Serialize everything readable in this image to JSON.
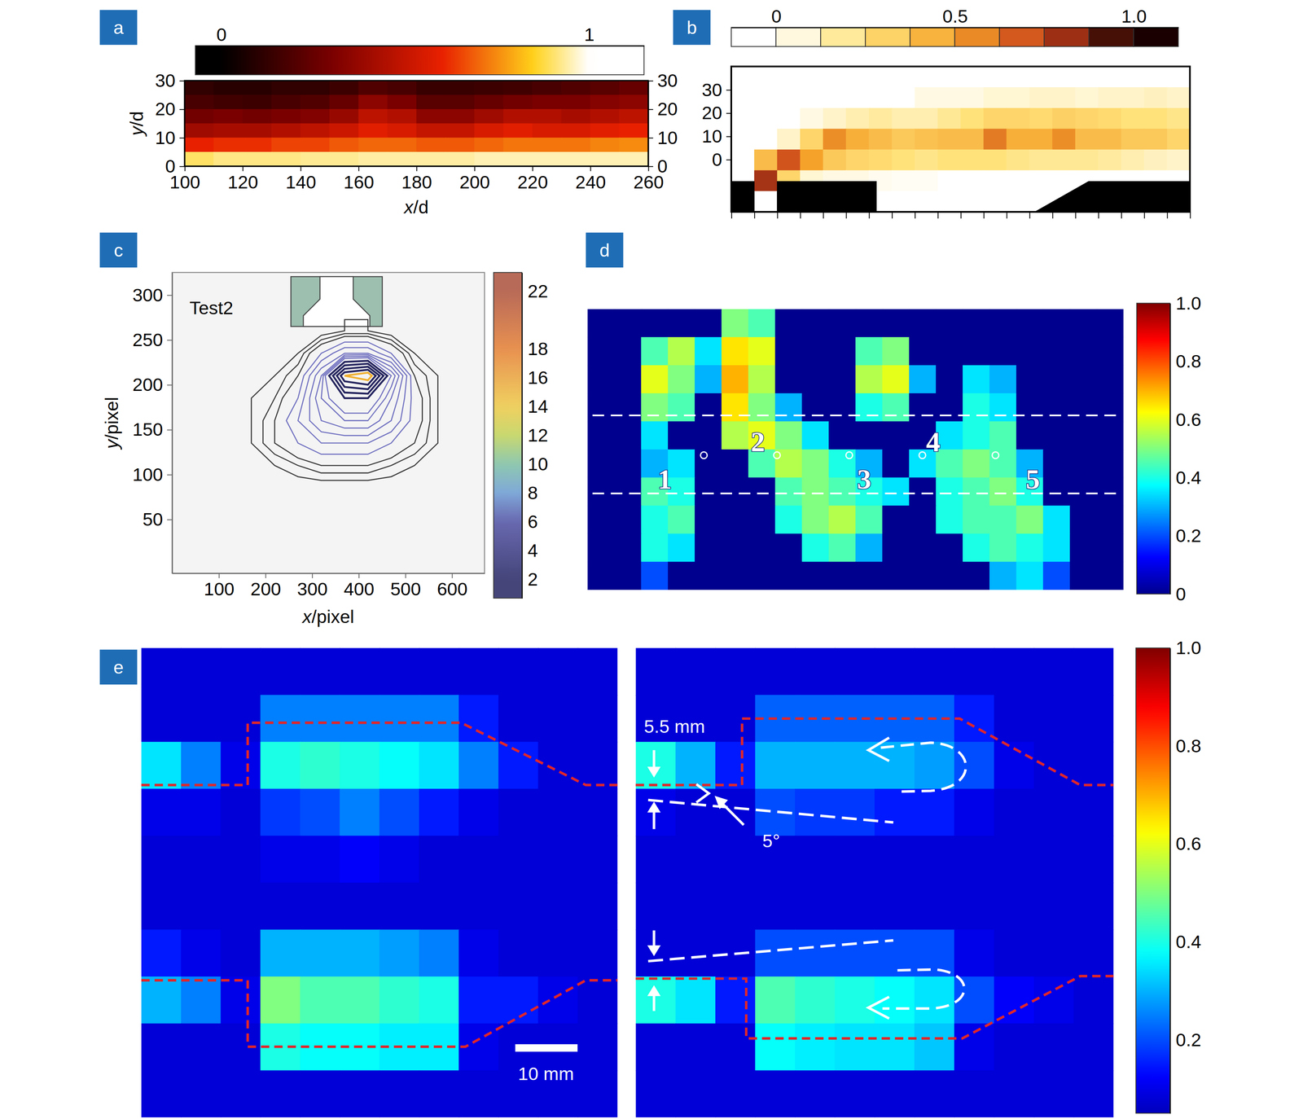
{
  "chart_data": [
    {
      "type": "heatmap",
      "label": "a",
      "xlabel": "x/d",
      "ylabel": "y/d",
      "xlim": [
        100,
        260
      ],
      "xticks": [
        100,
        120,
        140,
        160,
        180,
        200,
        220,
        240,
        260
      ],
      "ylim": [
        0,
        30
      ],
      "yticks": [
        0,
        10,
        20,
        30
      ],
      "y2lim": [
        0,
        30
      ],
      "y2ticks": [
        0,
        10,
        20,
        30
      ],
      "colorbar": {
        "lim": [
          -0.07,
          1.15
        ],
        "ticks": [
          0,
          1
        ]
      },
      "values": [
        [
          0.12,
          0.1,
          0.1,
          0.12,
          0.12,
          0.15,
          0.2,
          0.18,
          0.14,
          0.14,
          0.15,
          0.16,
          0.18,
          0.2,
          0.22,
          0.25
        ],
        [
          0.18,
          0.16,
          0.15,
          0.18,
          0.2,
          0.25,
          0.35,
          0.3,
          0.22,
          0.22,
          0.25,
          0.28,
          0.3,
          0.3,
          0.33,
          0.35
        ],
        [
          0.28,
          0.3,
          0.28,
          0.3,
          0.32,
          0.38,
          0.48,
          0.45,
          0.35,
          0.35,
          0.4,
          0.45,
          0.45,
          0.42,
          0.45,
          0.48
        ],
        [
          0.4,
          0.42,
          0.42,
          0.45,
          0.48,
          0.52,
          0.58,
          0.55,
          0.5,
          0.5,
          0.55,
          0.58,
          0.55,
          0.55,
          0.58,
          0.6
        ],
        [
          0.6,
          0.62,
          0.62,
          0.65,
          0.65,
          0.68,
          0.7,
          0.7,
          0.68,
          0.68,
          0.7,
          0.72,
          0.72,
          0.72,
          0.74,
          0.75
        ],
        [
          0.9,
          0.92,
          0.92,
          0.92,
          0.93,
          0.93,
          0.94,
          0.94,
          0.94,
          0.94,
          0.95,
          0.95,
          0.95,
          0.95,
          0.95,
          0.95
        ]
      ]
    },
    {
      "type": "heatmap",
      "label": "b",
      "xlim": [
        0,
        100
      ],
      "xticks": [
        0,
        5,
        10,
        15,
        20,
        25,
        30,
        35,
        40,
        45,
        50,
        55,
        60,
        65,
        70,
        75,
        80,
        85,
        90,
        95,
        100
      ],
      "ylim": [
        -22.5,
        40
      ],
      "yticks": [
        0,
        10,
        20,
        30
      ],
      "tick_labels": "y",
      "colorbar": {
        "lim": [
          -0.125,
          1.125
        ],
        "ticks": [
          0,
          0.5,
          {
            "value": 1,
            "label": "1.0"
          }
        ]
      },
      "values": [
        [
          0,
          0,
          0,
          0,
          0,
          0,
          0,
          0,
          0,
          0,
          0,
          0,
          0,
          0,
          0,
          0,
          0,
          0,
          0,
          0
        ],
        [
          0,
          0,
          0,
          0,
          0,
          0,
          0,
          0,
          0.05,
          0.05,
          0.05,
          0.08,
          0.08,
          0.1,
          0.1,
          0.08,
          0.1,
          0.1,
          0.12,
          0.1
        ],
        [
          0,
          0,
          0,
          0.05,
          0.1,
          0.15,
          0.18,
          0.15,
          0.15,
          0.2,
          0.25,
          0.3,
          0.3,
          0.28,
          0.32,
          0.3,
          0.28,
          0.25,
          0.25,
          0.22
        ],
        [
          0,
          0,
          0.1,
          0.3,
          0.55,
          0.45,
          0.4,
          0.35,
          0.38,
          0.4,
          0.4,
          0.6,
          0.45,
          0.45,
          0.55,
          0.4,
          0.4,
          0.35,
          0.35,
          0.3
        ],
        [
          0,
          0.4,
          0.7,
          0.5,
          0.35,
          0.3,
          0.28,
          0.25,
          0.22,
          0.25,
          0.25,
          0.25,
          0.22,
          0.2,
          0.2,
          0.2,
          0.18,
          0.15,
          0.12,
          0.1
        ],
        [
          0,
          0.8,
          0.3,
          0.08,
          0.05,
          0.05,
          0.03,
          0.02,
          0.02,
          0,
          0,
          0,
          0,
          0,
          0,
          0,
          0,
          0,
          0,
          0
        ],
        [
          0,
          0,
          0,
          0,
          0,
          0,
          0,
          0,
          0,
          0,
          0,
          0,
          0,
          0,
          0,
          0,
          0,
          0,
          0,
          0
        ]
      ]
    },
    {
      "type": "contour",
      "label": "c",
      "title": "Test2",
      "xlabel": "x/pixel",
      "ylabel": "y/pixel",
      "xlim": [
        0,
        670
      ],
      "xticks": [
        100,
        200,
        300,
        400,
        500,
        600
      ],
      "ylim": [
        -10,
        325
      ],
      "yticks": [
        50,
        100,
        150,
        200,
        250,
        300
      ],
      "x": [
        120,
        170,
        220,
        270,
        320,
        370,
        420,
        470,
        520,
        570,
        620
      ],
      "y": [
        260,
        235,
        210,
        185,
        160,
        135,
        110,
        85
      ],
      "values": [
        [
          0,
          0,
          0,
          0,
          0.5,
          1,
          1,
          0.5,
          0,
          0,
          0
        ],
        [
          0,
          0,
          0.5,
          1,
          3,
          5,
          5,
          3,
          1,
          0.5,
          0
        ],
        [
          0,
          0.5,
          1,
          2,
          6,
          18,
          20,
          8,
          2,
          1,
          0
        ],
        [
          0,
          1,
          1.5,
          3,
          7,
          10,
          10,
          6,
          2.5,
          1,
          0
        ],
        [
          0,
          1,
          2,
          4,
          6,
          7,
          7,
          5,
          2.5,
          1,
          0
        ],
        [
          0,
          1,
          2,
          3,
          4,
          4,
          4,
          3,
          2,
          1,
          0
        ],
        [
          0,
          0.5,
          1,
          1.5,
          2,
          2,
          2,
          1.5,
          1,
          0.5,
          0
        ],
        [
          0,
          0,
          0,
          0.5,
          0.5,
          0.5,
          0.5,
          0.5,
          0,
          0,
          0
        ]
      ],
      "levels": [
        1,
        1.5,
        2,
        3,
        4,
        5,
        6,
        7,
        8,
        10,
        12,
        14,
        16,
        18
      ],
      "colorbar": {
        "lim": [
          0.7,
          23.3
        ],
        "ticks": [
          2,
          4,
          6,
          8,
          10,
          12,
          14,
          16,
          18,
          22
        ]
      }
    },
    {
      "type": "heatmap",
      "label": "d",
      "annotations": [
        "1",
        "2",
        "3",
        "4",
        "5"
      ],
      "colorbar": {
        "lim": [
          0,
          1
        ],
        "ticks": [
          0,
          0.2,
          0.4,
          0.6,
          0.8,
          {
            "value": 1,
            "label": "1.0"
          }
        ]
      },
      "values": [
        [
          0,
          0,
          0,
          0,
          0,
          0.5,
          0.45,
          0,
          0,
          0,
          0,
          0,
          0,
          0,
          0,
          0,
          0,
          0,
          0,
          0
        ],
        [
          0,
          0,
          0.45,
          0.55,
          0.35,
          0.65,
          0.6,
          0,
          0,
          0,
          0.45,
          0.5,
          0,
          0,
          0,
          0,
          0,
          0,
          0,
          0
        ],
        [
          0,
          0,
          0.6,
          0.5,
          0.3,
          0.7,
          0.55,
          0,
          0,
          0,
          0.55,
          0.6,
          0.3,
          0,
          0.35,
          0.3,
          0,
          0,
          0,
          0
        ],
        [
          0,
          0,
          0.5,
          0.45,
          0,
          0.65,
          0.5,
          0.3,
          0,
          0,
          0.4,
          0.45,
          0,
          0,
          0.4,
          0.35,
          0,
          0,
          0,
          0
        ],
        [
          0,
          0,
          0.35,
          0,
          0,
          0.55,
          0.6,
          0.5,
          0.35,
          0,
          0,
          0,
          0,
          0.35,
          0.4,
          0.45,
          0,
          0,
          0,
          0
        ],
        [
          0,
          0,
          0.3,
          0.35,
          0,
          0,
          0.45,
          0.55,
          0.5,
          0.4,
          0.3,
          0,
          0.35,
          0.45,
          0.5,
          0.45,
          0.3,
          0,
          0,
          0
        ],
        [
          0,
          0,
          0.45,
          0.4,
          0,
          0,
          0,
          0.45,
          0.5,
          0.45,
          0.4,
          0.35,
          0,
          0.4,
          0.45,
          0.5,
          0.4,
          0,
          0,
          0
        ],
        [
          0,
          0,
          0.4,
          0.45,
          0,
          0,
          0,
          0.4,
          0.5,
          0.55,
          0.45,
          0,
          0,
          0.4,
          0.45,
          0.45,
          0.5,
          0.35,
          0,
          0
        ],
        [
          0,
          0,
          0.4,
          0.35,
          0,
          0,
          0,
          0,
          0.4,
          0.45,
          0.3,
          0,
          0,
          0,
          0.4,
          0.45,
          0.4,
          0.35,
          0,
          0
        ],
        [
          0,
          0,
          0.2,
          0,
          0,
          0,
          0,
          0,
          0,
          0,
          0,
          0,
          0,
          0,
          0,
          0.3,
          0.35,
          0.2,
          0,
          0
        ]
      ]
    },
    {
      "type": "heatmap",
      "label": "e",
      "annotations": [
        "5.5 mm",
        "5°",
        "10 mm"
      ],
      "colorbar": {
        "lim": [
          0.05,
          1
        ],
        "ticks": [
          0.2,
          0.4,
          0.6,
          0.8,
          {
            "value": 1,
            "label": "1.0"
          }
        ]
      },
      "series": [
        {
          "values": [
            [
              0.08,
              0.08,
              0.08,
              0.08,
              0.08,
              0.08,
              0.08,
              0.08,
              0.08,
              0.08,
              0.08,
              0.08
            ],
            [
              0.08,
              0.08,
              0.08,
              0.25,
              0.25,
              0.25,
              0.25,
              0.25,
              0.15,
              0.08,
              0.08,
              0.08
            ],
            [
              0.35,
              0.25,
              0.1,
              0.4,
              0.42,
              0.4,
              0.38,
              0.35,
              0.25,
              0.15,
              0.08,
              0.08
            ],
            [
              0.1,
              0.1,
              0.08,
              0.18,
              0.2,
              0.25,
              0.2,
              0.15,
              0.1,
              0.08,
              0.08,
              0.08
            ],
            [
              0.08,
              0.08,
              0.08,
              0.1,
              0.1,
              0.12,
              0.1,
              0.08,
              0.08,
              0.08,
              0.08,
              0.08
            ],
            [
              0.08,
              0.08,
              0.08,
              0.08,
              0.08,
              0.08,
              0.08,
              0.08,
              0.08,
              0.08,
              0.08,
              0.08
            ],
            [
              0.15,
              0.1,
              0.08,
              0.3,
              0.3,
              0.3,
              0.28,
              0.25,
              0.1,
              0.08,
              0.08,
              0.08
            ],
            [
              0.3,
              0.25,
              0.1,
              0.5,
              0.45,
              0.45,
              0.42,
              0.4,
              0.15,
              0.15,
              0.1,
              0.08
            ],
            [
              0.08,
              0.08,
              0.08,
              0.4,
              0.38,
              0.38,
              0.36,
              0.36,
              0.1,
              0.08,
              0.08,
              0.08
            ],
            [
              0.08,
              0.08,
              0.08,
              0.08,
              0.08,
              0.08,
              0.08,
              0.08,
              0.08,
              0.08,
              0.08,
              0.08
            ]
          ]
        },
        {
          "values": [
            [
              0.08,
              0.08,
              0.08,
              0.08,
              0.08,
              0.08,
              0.08,
              0.08,
              0.08,
              0.08,
              0.08,
              0.08
            ],
            [
              0.08,
              0.08,
              0.08,
              0.22,
              0.22,
              0.22,
              0.22,
              0.22,
              0.15,
              0.08,
              0.08,
              0.08
            ],
            [
              0.4,
              0.3,
              0.15,
              0.3,
              0.3,
              0.3,
              0.3,
              0.28,
              0.2,
              0.1,
              0.08,
              0.08
            ],
            [
              0.1,
              0.08,
              0.08,
              0.2,
              0.18,
              0.18,
              0.15,
              0.15,
              0.1,
              0.08,
              0.08,
              0.08
            ],
            [
              0.08,
              0.08,
              0.08,
              0.08,
              0.08,
              0.08,
              0.08,
              0.08,
              0.08,
              0.08,
              0.08,
              0.08
            ],
            [
              0.08,
              0.08,
              0.08,
              0.08,
              0.08,
              0.08,
              0.08,
              0.08,
              0.08,
              0.08,
              0.08,
              0.08
            ],
            [
              0.08,
              0.08,
              0.08,
              0.2,
              0.2,
              0.2,
              0.2,
              0.2,
              0.1,
              0.08,
              0.08,
              0.08
            ],
            [
              0.4,
              0.35,
              0.15,
              0.45,
              0.42,
              0.4,
              0.38,
              0.35,
              0.2,
              0.12,
              0.1,
              0.08
            ],
            [
              0.08,
              0.08,
              0.08,
              0.38,
              0.36,
              0.35,
              0.35,
              0.32,
              0.1,
              0.08,
              0.08,
              0.08
            ],
            [
              0.08,
              0.08,
              0.08,
              0.08,
              0.08,
              0.08,
              0.08,
              0.08,
              0.08,
              0.08,
              0.08,
              0.08
            ]
          ]
        }
      ]
    }
  ]
}
